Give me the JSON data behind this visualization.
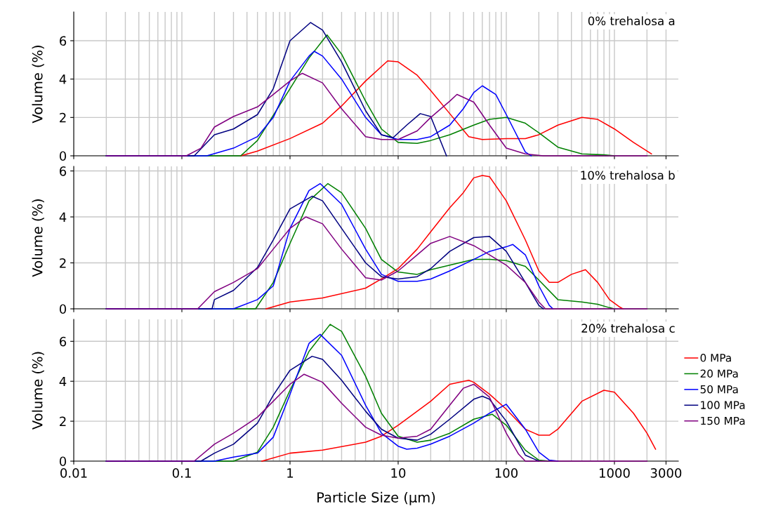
{
  "chart_data": [
    {
      "type": "line",
      "title": "0% trehalosa a",
      "ylabel": "Volume (%)",
      "log": "x",
      "grid": true,
      "tick_labels": "y",
      "legend": false,
      "xlim": [
        0.01,
        3900
      ],
      "xticks": [
        0.01,
        0.1,
        1,
        10,
        100,
        1000,
        3000
      ],
      "ylim": [
        0,
        7.5
      ],
      "yticks": [
        0,
        2,
        4,
        6
      ],
      "series": [
        {
          "color": "#ff0000",
          "x": [
            0.35,
            0.5,
            1,
            2,
            3,
            5,
            8,
            10,
            15,
            20,
            30,
            45,
            60,
            100,
            150,
            200,
            300,
            500,
            700,
            1000,
            1500,
            2200
          ],
          "values": [
            0,
            0.25,
            0.9,
            1.7,
            2.6,
            3.9,
            4.95,
            4.9,
            4.2,
            3.4,
            2.2,
            1.0,
            0.85,
            0.9,
            0.9,
            1.1,
            1.6,
            2.0,
            1.9,
            1.4,
            0.7,
            0.1
          ]
        },
        {
          "color": "#008000",
          "x": [
            0.02,
            0.35,
            0.5,
            1,
            1.5,
            2.2,
            3,
            5,
            7,
            10,
            15,
            20,
            30,
            50,
            70,
            100,
            150,
            200,
            300,
            500,
            800,
            1000
          ],
          "values": [
            0,
            0,
            0.8,
            3.5,
            5.1,
            6.3,
            5.3,
            2.85,
            1.4,
            0.7,
            0.65,
            0.8,
            1.1,
            1.6,
            1.9,
            2.0,
            1.7,
            1.2,
            0.45,
            0.1,
            0.05,
            0
          ]
        },
        {
          "color": "#0000ff",
          "x": [
            0.02,
            0.17,
            0.3,
            0.5,
            0.7,
            1,
            1.5,
            1.67,
            2,
            3,
            5,
            7,
            10,
            15,
            20,
            30,
            40,
            50,
            60,
            80,
            100,
            150,
            170
          ],
          "values": [
            0,
            0,
            0.4,
            1.0,
            2.0,
            3.9,
            5.2,
            5.45,
            5.2,
            4.0,
            2.0,
            1.1,
            0.85,
            0.85,
            1.0,
            1.6,
            2.45,
            3.3,
            3.65,
            3.2,
            2.15,
            0.2,
            0
          ]
        },
        {
          "color": "#000080",
          "x": [
            0.02,
            0.13,
            0.2,
            0.3,
            0.5,
            0.7,
            1,
            1.55,
            2,
            3,
            5,
            7,
            9,
            12,
            16,
            20,
            28
          ],
          "values": [
            0,
            0,
            1.1,
            1.4,
            2.15,
            3.5,
            6.0,
            6.95,
            6.55,
            4.9,
            2.35,
            1.1,
            0.95,
            1.6,
            2.2,
            2.05,
            0
          ]
        },
        {
          "color": "#800080",
          "x": [
            0.02,
            0.11,
            0.15,
            0.2,
            0.3,
            0.5,
            0.7,
            1,
            1.3,
            2,
            3,
            5,
            7,
            10,
            15,
            20,
            30,
            35,
            50,
            70,
            100,
            150,
            220,
            2000
          ],
          "values": [
            0,
            0,
            0.4,
            1.5,
            2.05,
            2.55,
            3.2,
            3.9,
            4.3,
            3.8,
            2.45,
            1.0,
            0.85,
            0.85,
            1.3,
            2.0,
            2.85,
            3.2,
            2.8,
            1.6,
            0.4,
            0.1,
            0,
            0
          ]
        }
      ]
    },
    {
      "type": "line",
      "title": "10% trehalosa b",
      "ylabel": "Volume (%)",
      "log": "x",
      "grid": true,
      "tick_labels": "y",
      "legend": false,
      "xlim": [
        0.01,
        3900
      ],
      "xticks": [
        0.01,
        0.1,
        1,
        10,
        100,
        1000,
        3000
      ],
      "ylim": [
        0,
        6.2
      ],
      "yticks": [
        0,
        2,
        4,
        6
      ],
      "series": [
        {
          "color": "#ff0000",
          "x": [
            0.6,
            1,
            2,
            5,
            7,
            10,
            15,
            20,
            30,
            40,
            50,
            60,
            70,
            100,
            150,
            200,
            250,
            300,
            400,
            540,
            700,
            900,
            1100,
            1200
          ],
          "values": [
            0,
            0.3,
            0.47,
            0.9,
            1.3,
            1.75,
            2.6,
            3.35,
            4.4,
            5.05,
            5.7,
            5.8,
            5.75,
            4.7,
            3.0,
            1.65,
            1.15,
            1.15,
            1.5,
            1.7,
            1.15,
            0.4,
            0.1,
            0
          ]
        },
        {
          "color": "#008000",
          "x": [
            0.02,
            0.48,
            0.7,
            1,
            1.5,
            2.24,
            3,
            5,
            7,
            10,
            15,
            20,
            30,
            50,
            70,
            100,
            150,
            200,
            300,
            500,
            700,
            900,
            1000
          ],
          "values": [
            0,
            0,
            1.15,
            2.85,
            4.7,
            5.45,
            5.05,
            3.5,
            2.15,
            1.6,
            1.5,
            1.7,
            1.9,
            2.15,
            2.15,
            2.1,
            1.85,
            1.25,
            0.4,
            0.3,
            0.2,
            0.05,
            0
          ]
        },
        {
          "color": "#0000ff",
          "x": [
            0.02,
            0.3,
            0.5,
            0.7,
            1,
            1.5,
            1.9,
            3,
            5,
            7,
            10,
            15,
            20,
            30,
            50,
            70,
            100,
            115,
            150,
            200,
            250,
            270
          ],
          "values": [
            0,
            0,
            0.4,
            1.0,
            3.5,
            5.15,
            5.45,
            4.55,
            2.6,
            1.5,
            1.2,
            1.2,
            1.3,
            1.65,
            2.15,
            2.5,
            2.7,
            2.8,
            2.35,
            1.0,
            0.15,
            0
          ]
        },
        {
          "color": "#000080",
          "x": [
            0.02,
            0.19,
            0.2,
            0.3,
            0.5,
            0.7,
            1,
            1.6,
            2,
            3,
            5,
            7,
            10,
            15,
            20,
            30,
            50,
            70,
            100,
            150,
            200,
            220
          ],
          "values": [
            0,
            0,
            0.4,
            0.8,
            1.8,
            3.0,
            4.35,
            4.9,
            4.7,
            3.5,
            2.0,
            1.4,
            1.3,
            1.4,
            1.75,
            2.5,
            3.1,
            3.15,
            2.5,
            1.15,
            0.15,
            0
          ]
        },
        {
          "color": "#800080",
          "x": [
            0.02,
            0.14,
            0.2,
            0.3,
            0.5,
            0.7,
            1,
            1.4,
            2,
            3,
            5,
            7,
            10,
            15,
            20,
            30,
            50,
            70,
            100,
            150,
            200,
            230,
            2000
          ],
          "values": [
            0,
            0,
            0.75,
            1.15,
            1.75,
            2.6,
            3.5,
            4.0,
            3.7,
            2.6,
            1.35,
            1.25,
            1.65,
            2.35,
            2.85,
            3.15,
            2.75,
            2.35,
            1.9,
            1.15,
            0.3,
            0,
            0
          ]
        }
      ]
    },
    {
      "type": "line",
      "title": "20% trehalosa c",
      "xlabel": "Particle Size (µm)",
      "ylabel": "Volume (%)",
      "log": "x",
      "grid": true,
      "legend": "right",
      "xlim": [
        0.01,
        3900
      ],
      "xticks": [
        0.01,
        0.1,
        1,
        10,
        100,
        1000,
        3000
      ],
      "ylim": [
        0,
        7.1
      ],
      "yticks": [
        0,
        2,
        4,
        6
      ],
      "series": [
        {
          "name": "0 MPa",
          "color": "#ff0000",
          "x": [
            0.55,
            1,
            2,
            5,
            7,
            10,
            15,
            20,
            30,
            45,
            50,
            70,
            100,
            150,
            200,
            250,
            300,
            500,
            800,
            1000,
            1500,
            2000,
            2400
          ],
          "values": [
            0,
            0.4,
            0.55,
            0.95,
            1.25,
            1.8,
            2.5,
            3.0,
            3.85,
            4.05,
            3.95,
            3.35,
            2.6,
            1.6,
            1.3,
            1.3,
            1.6,
            3.0,
            3.55,
            3.45,
            2.4,
            1.4,
            0.6
          ]
        },
        {
          "name": "20 MPa",
          "color": "#008000",
          "x": [
            0.02,
            0.3,
            0.5,
            0.7,
            1,
            1.5,
            2.35,
            3,
            5,
            7,
            10,
            15,
            20,
            30,
            50,
            74,
            100,
            150,
            200,
            250
          ],
          "values": [
            0,
            0,
            0.45,
            1.7,
            3.55,
            5.5,
            6.85,
            6.5,
            4.25,
            2.4,
            1.25,
            0.95,
            1.05,
            1.4,
            2.1,
            2.35,
            1.8,
            0.55,
            0.05,
            0
          ]
        },
        {
          "name": "50 MPa",
          "color": "#0000ff",
          "x": [
            0.02,
            0.2,
            0.3,
            0.5,
            0.7,
            1,
            1.5,
            1.9,
            3,
            5,
            7,
            10,
            12,
            15,
            20,
            30,
            50,
            70,
            100,
            150,
            200,
            250,
            300
          ],
          "values": [
            0,
            0,
            0.2,
            0.4,
            1.2,
            3.35,
            5.9,
            6.35,
            5.3,
            2.8,
            1.4,
            0.75,
            0.6,
            0.65,
            0.85,
            1.25,
            1.9,
            2.4,
            2.85,
            1.6,
            0.45,
            0.05,
            0
          ]
        },
        {
          "name": "100 MPa",
          "color": "#000080",
          "x": [
            0.02,
            0.15,
            0.2,
            0.3,
            0.5,
            0.7,
            1,
            1.6,
            2,
            3,
            5,
            7,
            10,
            15,
            20,
            30,
            50,
            60,
            70,
            100,
            150,
            200
          ],
          "values": [
            0,
            0,
            0.4,
            0.85,
            1.9,
            3.3,
            4.55,
            5.25,
            5.1,
            4.05,
            2.5,
            1.6,
            1.15,
            1.05,
            1.35,
            2.1,
            3.1,
            3.25,
            3.1,
            2.0,
            0.3,
            0
          ]
        },
        {
          "name": "150 MPa",
          "color": "#800080",
          "x": [
            0.02,
            0.13,
            0.2,
            0.3,
            0.5,
            0.7,
            1,
            1.35,
            2,
            3,
            5,
            7,
            10,
            15,
            20,
            30,
            40,
            50,
            70,
            100,
            130,
            150,
            2000
          ],
          "values": [
            0,
            0,
            0.85,
            1.4,
            2.2,
            3.0,
            3.85,
            4.35,
            3.95,
            2.9,
            1.7,
            1.3,
            1.15,
            1.25,
            1.6,
            2.8,
            3.65,
            3.85,
            3.2,
            1.4,
            0.35,
            0,
            0
          ]
        }
      ]
    }
  ]
}
